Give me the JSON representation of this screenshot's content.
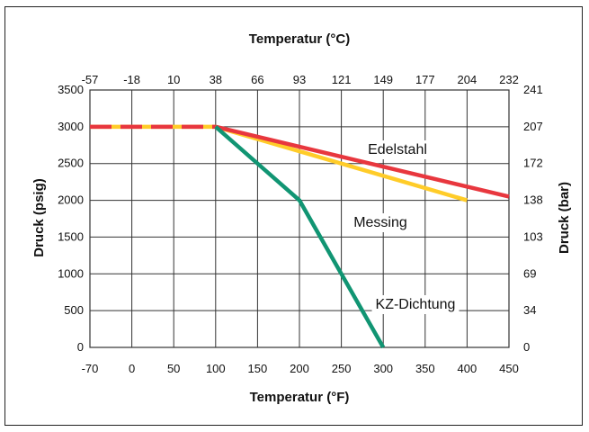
{
  "chart_data": {
    "type": "line",
    "x_top_label": "Temperatur (°C)",
    "x_bottom_label": "Temperatur (°F)",
    "y_left_label": "Druck (psig)",
    "y_right_label": "Druck (bar)",
    "x_range": [
      -70,
      450
    ],
    "y_range": [
      0,
      3500
    ],
    "grid": true,
    "x_bottom_ticks": [
      {
        "value": -70,
        "label": "-70"
      },
      {
        "value": 0,
        "label": "0"
      },
      {
        "value": 50,
        "label": "50"
      },
      {
        "value": 100,
        "label": "100"
      },
      {
        "value": 150,
        "label": "150"
      },
      {
        "value": 200,
        "label": "200"
      },
      {
        "value": 250,
        "label": "250"
      },
      {
        "value": 300,
        "label": "300"
      },
      {
        "value": 350,
        "label": "350"
      },
      {
        "value": 400,
        "label": "400"
      },
      {
        "value": 450,
        "label": "450"
      }
    ],
    "x_top_ticks": [
      "-57",
      "-18",
      "10",
      "38",
      "66",
      "93",
      "121",
      "149",
      "177",
      "204",
      "232"
    ],
    "y_left_ticks": [
      {
        "value": 0,
        "label": "0"
      },
      {
        "value": 500,
        "label": "500"
      },
      {
        "value": 1000,
        "label": "1000"
      },
      {
        "value": 1500,
        "label": "1500"
      },
      {
        "value": 2000,
        "label": "2000"
      },
      {
        "value": 2500,
        "label": "2500"
      },
      {
        "value": 3000,
        "label": "3000"
      },
      {
        "value": 3500,
        "label": "3500"
      }
    ],
    "y_right_ticks": [
      "0",
      "34",
      "69",
      "103",
      "138",
      "172",
      "207",
      "241"
    ],
    "series": [
      {
        "name": "Edelstahl",
        "color": "#e8373e",
        "points": [
          [
            -70,
            3000
          ],
          [
            100,
            3000
          ],
          [
            450,
            2050
          ]
        ]
      },
      {
        "name": "Messing",
        "color": "#ffcc29",
        "points": [
          [
            -70,
            3000
          ],
          [
            100,
            3000
          ],
          [
            400,
            2000
          ]
        ]
      },
      {
        "name": "KZ-Dichtung",
        "color": "#119573",
        "points": [
          [
            100,
            3000
          ],
          [
            200,
            2000
          ],
          [
            300,
            0
          ]
        ]
      }
    ]
  }
}
